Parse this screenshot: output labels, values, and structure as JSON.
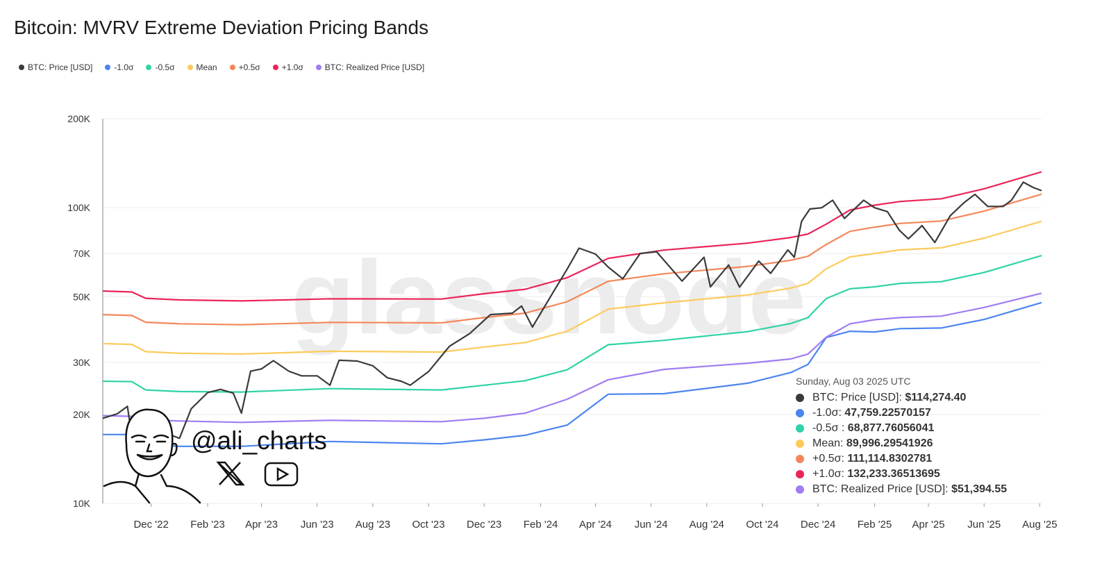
{
  "chart_data": {
    "type": "line",
    "title": "Bitcoin: MVRV Extreme Deviation Pricing Bands",
    "y_scale": "log",
    "ylim": [
      10000,
      200000
    ],
    "xlim": [
      "2022-10-09",
      "2025-08-03"
    ],
    "y_ticks": [
      {
        "value": 200000,
        "label": "200K"
      },
      {
        "value": 100000,
        "label": "100K"
      },
      {
        "value": 70000,
        "label": "70K"
      },
      {
        "value": 50000,
        "label": "50K"
      },
      {
        "value": 30000,
        "label": "30K"
      },
      {
        "value": 20000,
        "label": "20K"
      },
      {
        "value": 10000,
        "label": "10K"
      }
    ],
    "x_ticks": [
      {
        "date": "2022-12-01",
        "label": "Dec '22"
      },
      {
        "date": "2023-02-01",
        "label": "Feb '23"
      },
      {
        "date": "2023-04-01",
        "label": "Apr '23"
      },
      {
        "date": "2023-06-01",
        "label": "Jun '23"
      },
      {
        "date": "2023-08-01",
        "label": "Aug '23"
      },
      {
        "date": "2023-10-01",
        "label": "Oct '23"
      },
      {
        "date": "2023-12-01",
        "label": "Dec '23"
      },
      {
        "date": "2024-02-01",
        "label": "Feb '24"
      },
      {
        "date": "2024-04-01",
        "label": "Apr '24"
      },
      {
        "date": "2024-06-01",
        "label": "Jun '24"
      },
      {
        "date": "2024-08-01",
        "label": "Aug '24"
      },
      {
        "date": "2024-10-01",
        "label": "Oct '24"
      },
      {
        "date": "2024-12-01",
        "label": "Dec '24"
      },
      {
        "date": "2025-02-01",
        "label": "Feb '25"
      },
      {
        "date": "2025-04-01",
        "label": "Apr '25"
      },
      {
        "date": "2025-06-01",
        "label": "Jun '25"
      },
      {
        "date": "2025-08-01",
        "label": "Aug '25"
      }
    ],
    "grid": true,
    "legend_placement": "top-left",
    "band_dates": [
      "2022-10-09",
      "2022-11-10",
      "2022-11-25",
      "2023-01-01",
      "2023-03-10",
      "2023-06-15",
      "2023-10-15",
      "2023-12-01",
      "2024-01-15",
      "2024-03-01",
      "2024-04-15",
      "2024-06-15",
      "2024-09-15",
      "2024-11-01",
      "2024-11-20",
      "2024-12-10",
      "2025-01-05",
      "2025-02-01",
      "2025-03-01",
      "2025-04-15",
      "2025-06-01",
      "2025-08-03"
    ],
    "series": [
      {
        "name": "-1.0σ",
        "color": "#4c84f0",
        "values": [
          17100,
          17100,
          15800,
          15600,
          15600,
          16200,
          15900,
          16400,
          17000,
          18400,
          23400,
          23500,
          25500,
          27700,
          29500,
          36400,
          38200,
          38000,
          39000,
          39200,
          41900,
          47759.23
        ]
      },
      {
        "name": "-0.5σ",
        "color": "#2fd3a6",
        "values": [
          25900,
          25800,
          24200,
          23900,
          23800,
          24450,
          24200,
          25100,
          26000,
          28300,
          34400,
          35600,
          38100,
          40600,
          42500,
          49300,
          53200,
          54000,
          55500,
          56200,
          60400,
          68877.76
        ]
      },
      {
        "name": "Mean",
        "color": "#fccb5b",
        "values": [
          34700,
          34500,
          32600,
          32200,
          32000,
          32700,
          32500,
          33800,
          35000,
          38200,
          45400,
          47700,
          50700,
          53500,
          55500,
          62200,
          68200,
          70000,
          72000,
          73200,
          78900,
          89996.3
        ]
      },
      {
        "name": "+0.5σ",
        "color": "#f4875a",
        "values": [
          43500,
          43200,
          41000,
          40500,
          40200,
          40950,
          40800,
          42500,
          44000,
          48100,
          56400,
          59800,
          63300,
          66400,
          68500,
          75100,
          83200,
          86000,
          88500,
          90200,
          97400,
          111114.83
        ]
      },
      {
        "name": "+1.0σ",
        "color": "#eb2457",
        "values": [
          52300,
          51900,
          49400,
          48800,
          48400,
          49200,
          49100,
          51200,
          53000,
          58000,
          67400,
          71900,
          75900,
          79300,
          81500,
          88000,
          98200,
          102000,
          105000,
          107200,
          115900,
          132233.37
        ]
      },
      {
        "name": "BTC: Realized Price [USD]",
        "color": "#a07cf2",
        "values": [
          19800,
          19700,
          19200,
          19000,
          18800,
          19100,
          18900,
          19400,
          20200,
          22500,
          26200,
          28400,
          29800,
          30800,
          32000,
          36500,
          40500,
          41800,
          42500,
          43000,
          46000,
          51394.55
        ]
      }
    ],
    "price": {
      "name": "BTC: Price [USD]",
      "color": "#3a3a3a",
      "points": [
        [
          "2022-10-09",
          19400
        ],
        [
          "2022-10-25",
          20100
        ],
        [
          "2022-11-05",
          21300
        ],
        [
          "2022-11-10",
          16800
        ],
        [
          "2022-11-21",
          15800
        ],
        [
          "2022-12-01",
          17100
        ],
        [
          "2022-12-15",
          17400
        ],
        [
          "2023-01-01",
          16600
        ],
        [
          "2023-01-14",
          20900
        ],
        [
          "2023-02-01",
          23700
        ],
        [
          "2023-02-15",
          24300
        ],
        [
          "2023-03-01",
          23600
        ],
        [
          "2023-03-10",
          20200
        ],
        [
          "2023-03-20",
          28000
        ],
        [
          "2023-04-01",
          28500
        ],
        [
          "2023-04-14",
          30400
        ],
        [
          "2023-05-01",
          28000
        ],
        [
          "2023-05-15",
          27000
        ],
        [
          "2023-06-01",
          27000
        ],
        [
          "2023-06-15",
          25100
        ],
        [
          "2023-06-25",
          30500
        ],
        [
          "2023-07-15",
          30300
        ],
        [
          "2023-08-01",
          29200
        ],
        [
          "2023-08-17",
          26600
        ],
        [
          "2023-09-01",
          25900
        ],
        [
          "2023-09-11",
          25100
        ],
        [
          "2023-10-01",
          27900
        ],
        [
          "2023-10-24",
          34000
        ],
        [
          "2023-11-15",
          37500
        ],
        [
          "2023-12-08",
          43500
        ],
        [
          "2024-01-01",
          44000
        ],
        [
          "2024-01-11",
          46500
        ],
        [
          "2024-01-23",
          39500
        ],
        [
          "2024-02-15",
          52000
        ],
        [
          "2024-03-01",
          62000
        ],
        [
          "2024-03-14",
          73000
        ],
        [
          "2024-04-01",
          69700
        ],
        [
          "2024-04-15",
          63000
        ],
        [
          "2024-05-01",
          57500
        ],
        [
          "2024-05-20",
          70000
        ],
        [
          "2024-06-07",
          71000
        ],
        [
          "2024-07-05",
          56500
        ],
        [
          "2024-07-29",
          68000
        ],
        [
          "2024-08-05",
          54000
        ],
        [
          "2024-08-25",
          64000
        ],
        [
          "2024-09-06",
          53900
        ],
        [
          "2024-09-27",
          66000
        ],
        [
          "2024-10-10",
          60000
        ],
        [
          "2024-10-29",
          72000
        ],
        [
          "2024-11-05",
          68000
        ],
        [
          "2024-11-13",
          90000
        ],
        [
          "2024-11-22",
          99000
        ],
        [
          "2024-12-05",
          100000
        ],
        [
          "2024-12-17",
          106000
        ],
        [
          "2024-12-30",
          92000
        ],
        [
          "2025-01-20",
          106000
        ],
        [
          "2025-02-01",
          100000
        ],
        [
          "2025-02-15",
          97000
        ],
        [
          "2025-02-28",
          84000
        ],
        [
          "2025-03-10",
          78500
        ],
        [
          "2025-03-25",
          87000
        ],
        [
          "2025-04-08",
          76300
        ],
        [
          "2025-04-25",
          94000
        ],
        [
          "2025-05-10",
          104000
        ],
        [
          "2025-05-22",
          111000
        ],
        [
          "2025-06-05",
          101000
        ],
        [
          "2025-06-22",
          101000
        ],
        [
          "2025-07-01",
          106000
        ],
        [
          "2025-07-14",
          122000
        ],
        [
          "2025-07-25",
          117000
        ],
        [
          "2025-08-03",
          114274.4
        ]
      ]
    },
    "legend": [
      {
        "label": "BTC: Price [USD]",
        "color": "#3a3a3a"
      },
      {
        "label": "-1.0σ",
        "color": "#4c84f0"
      },
      {
        "label": "-0.5σ",
        "color": "#2fd3a6"
      },
      {
        "label": "Mean",
        "color": "#fccb5b"
      },
      {
        "label": "+0.5σ",
        "color": "#f4875a"
      },
      {
        "label": "+1.0σ",
        "color": "#eb2457"
      },
      {
        "label": "BTC: Realized Price [USD]",
        "color": "#a07cf2"
      }
    ],
    "tooltip": {
      "date": "Sunday, Aug 03 2025 UTC",
      "rows": [
        {
          "label": "BTC: Price [USD]:",
          "value": "$114,274.40",
          "color": "#3a3a3a"
        },
        {
          "label": "-1.0σ:",
          "value": "47,759.22570157",
          "color": "#4c84f0"
        },
        {
          "label": "-0.5σ :",
          "value": "68,877.76056041",
          "color": "#2fd3a6"
        },
        {
          "label": "Mean:",
          "value": "89,996.29541926",
          "color": "#fccb5b"
        },
        {
          "label": "+0.5σ:",
          "value": "111,114.8302781",
          "color": "#f4875a"
        },
        {
          "label": "+1.0σ:",
          "value": "132,233.36513695",
          "color": "#eb2457"
        },
        {
          "label": "BTC: Realized Price [USD]:",
          "value": "$51,394.55",
          "color": "#a07cf2"
        }
      ]
    }
  },
  "watermark": "glassnode",
  "branding": {
    "handle": "@ali_charts",
    "icons": [
      "x-logo-icon",
      "youtube-icon",
      "avatar-portrait"
    ]
  }
}
